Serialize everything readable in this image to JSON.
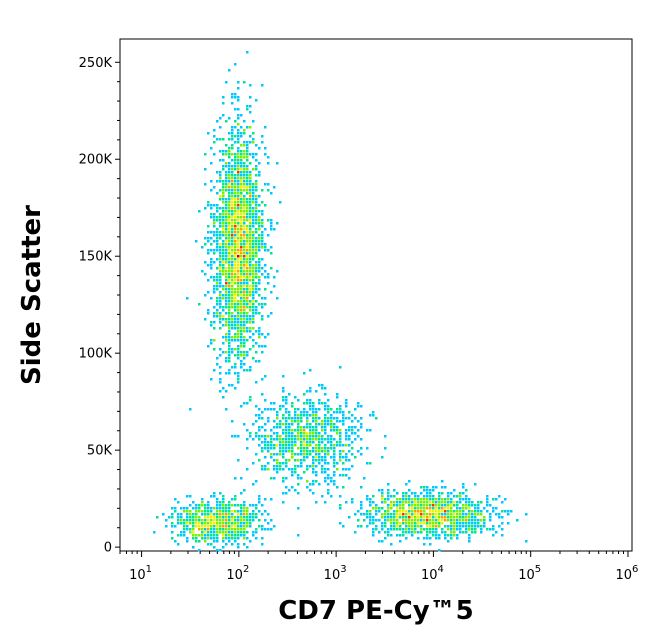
{
  "chart_data": {
    "type": "scatter",
    "style": "flow-cytometry density dot plot (pseudocolor)",
    "title": "",
    "xlabel": "CD7 PE-Cy™5",
    "ylabel": "Side Scatter",
    "x_scale": "log",
    "xlim": [
      6,
      1100000
    ],
    "ylim": [
      -2000,
      262000
    ],
    "x_ticks": [
      {
        "value": 10,
        "base": "10",
        "exp": "1"
      },
      {
        "value": 100,
        "base": "10",
        "exp": "2"
      },
      {
        "value": 1000,
        "base": "10",
        "exp": "3"
      },
      {
        "value": 10000,
        "base": "10",
        "exp": "4"
      },
      {
        "value": 100000,
        "base": "10",
        "exp": "5"
      },
      {
        "value": 1000000,
        "base": "10",
        "exp": "6"
      }
    ],
    "y_ticks": [
      {
        "value": 0,
        "label": "0"
      },
      {
        "value": 50000,
        "label": "50K"
      },
      {
        "value": 100000,
        "label": "100K"
      },
      {
        "value": 150000,
        "label": "150K"
      },
      {
        "value": 200000,
        "label": "200K"
      },
      {
        "value": 250000,
        "label": "250K"
      }
    ],
    "grid": false,
    "legend": "none",
    "color_scale": [
      "#0000cc",
      "#0060ff",
      "#00c8ff",
      "#00e68c",
      "#78f000",
      "#f0f000",
      "#ffa000",
      "#ff3000",
      "#c80000"
    ],
    "populations": [
      {
        "description": "CD7-negative, high side scatter",
        "x_center": 100,
        "y_center": 155000,
        "x_spread_decades": 0.13,
        "y_spread": 30000,
        "count": 2600
      },
      {
        "description": "CD7-negative, low side scatter",
        "x_center": 60,
        "y_center": 13000,
        "x_spread_decades": 0.22,
        "y_spread": 5500,
        "count": 800
      },
      {
        "description": "CD7-positive, low side scatter",
        "x_center": 9000,
        "y_center": 17000,
        "x_spread_decades": 0.32,
        "y_spread": 5500,
        "count": 1300
      },
      {
        "description": "intermediate, mid side scatter",
        "x_center": 500,
        "y_center": 55000,
        "x_spread_decades": 0.28,
        "y_spread": 12000,
        "count": 900
      }
    ]
  }
}
